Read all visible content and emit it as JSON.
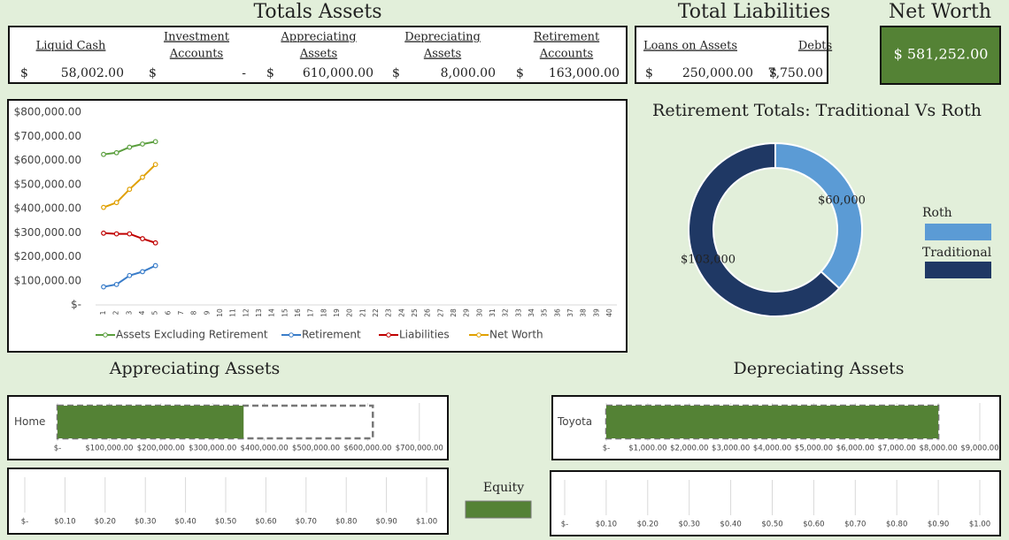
{
  "totals_assets": {
    "title": "Totals Assets",
    "columns": [
      {
        "label": [
          "Liquid Cash"
        ],
        "currency": "$",
        "value": "58,002.00"
      },
      {
        "label": [
          "Investment",
          "Accounts"
        ],
        "currency": "$",
        "value": "-"
      },
      {
        "label": [
          "Appreciating",
          "Assets"
        ],
        "currency": "$",
        "value": "610,000.00"
      },
      {
        "label": [
          "Depreciating",
          "Assets"
        ],
        "currency": "$",
        "value": "8,000.00"
      },
      {
        "label": [
          "Retirement",
          "Accounts"
        ],
        "currency": "$",
        "value": "163,000.00"
      }
    ]
  },
  "total_liabilities": {
    "title": "Total Liabilities",
    "columns": [
      {
        "label": [
          "Loans on Assets"
        ],
        "currency": "$",
        "value": "250,000.00"
      },
      {
        "label": [
          "Debts"
        ],
        "currency": "$",
        "value": "7,750.00"
      }
    ]
  },
  "net_worth": {
    "title": "Net Worth",
    "value": "$ 581,252.00"
  },
  "equity_legend": {
    "label": "Equity",
    "color": "#548235"
  },
  "chart_data": [
    {
      "type": "line",
      "categories": [
        1,
        2,
        3,
        4,
        5,
        6,
        7,
        8,
        9,
        10,
        11,
        12,
        13,
        14,
        15,
        16,
        17,
        18,
        19,
        20,
        21,
        22,
        23,
        24,
        25,
        26,
        27,
        28,
        29,
        30,
        31,
        32,
        33,
        34,
        35,
        36,
        37,
        38,
        39,
        40
      ],
      "ylim": [
        0,
        800000
      ],
      "yticks": [
        {
          "value": 0,
          "label": "$-"
        },
        {
          "value": 100000,
          "label": "$100,000.00"
        },
        {
          "value": 200000,
          "label": "$200,000.00"
        },
        {
          "value": 300000,
          "label": "$300,000.00"
        },
        {
          "value": 400000,
          "label": "$400,000.00"
        },
        {
          "value": 500000,
          "label": "$500,000.00"
        },
        {
          "value": 600000,
          "label": "$600,000.00"
        },
        {
          "value": 700000,
          "label": "$700,000.00"
        },
        {
          "value": 800000,
          "label": "$800,000.00"
        }
      ],
      "grid": false,
      "legend": "bottom",
      "series": [
        {
          "name": "Assets Excluding Retirement",
          "color": "#5b9f3e",
          "values": [
            625000,
            632000,
            655000,
            668000,
            678000,
            null,
            null,
            null,
            null,
            null,
            null,
            null,
            null,
            null,
            null,
            null,
            null,
            null,
            null,
            null,
            null,
            null,
            null,
            null,
            null,
            null,
            null,
            null,
            null,
            null,
            null,
            null,
            null,
            null,
            null,
            null,
            null,
            null,
            null,
            null
          ]
        },
        {
          "name": "Retirement",
          "color": "#3a7dc9",
          "values": [
            75000,
            85000,
            122000,
            138000,
            163000,
            null,
            null,
            null,
            null,
            null,
            null,
            null,
            null,
            null,
            null,
            null,
            null,
            null,
            null,
            null,
            null,
            null,
            null,
            null,
            null,
            null,
            null,
            null,
            null,
            null,
            null,
            null,
            null,
            null,
            null,
            null,
            null,
            null,
            null,
            null
          ]
        },
        {
          "name": "Liabilities",
          "color": "#c00000",
          "values": [
            298000,
            295000,
            295000,
            275000,
            257750,
            null,
            null,
            null,
            null,
            null,
            null,
            null,
            null,
            null,
            null,
            null,
            null,
            null,
            null,
            null,
            null,
            null,
            null,
            null,
            null,
            null,
            null,
            null,
            null,
            null,
            null,
            null,
            null,
            null,
            null,
            null,
            null,
            null,
            null,
            null
          ]
        },
        {
          "name": "Net Worth",
          "color": "#e0a000",
          "values": [
            405000,
            425000,
            480000,
            530000,
            583000,
            null,
            null,
            null,
            null,
            null,
            null,
            null,
            null,
            null,
            null,
            null,
            null,
            null,
            null,
            null,
            null,
            null,
            null,
            null,
            null,
            null,
            null,
            null,
            null,
            null,
            null,
            null,
            null,
            null,
            null,
            null,
            null,
            null,
            null,
            null
          ]
        }
      ]
    },
    {
      "type": "donut",
      "title": "Retirement Totals: Traditional Vs Roth",
      "categories": [
        "Roth",
        "Traditional"
      ],
      "values": [
        60000,
        103000
      ],
      "value_labels": [
        "$60,000",
        "$103,000"
      ],
      "colors": [
        "#5b9bd5",
        "#1f3864"
      ],
      "legend": "right"
    },
    {
      "type": "hbar",
      "title": "Appreciating Assets",
      "categories": [
        "Home"
      ],
      "values": [
        360000
      ],
      "targets": [
        610000
      ],
      "color": "#548235",
      "xlim": [
        0,
        750000
      ],
      "xticks": [
        {
          "value": 0,
          "label": "$-"
        },
        {
          "value": 100000,
          "label": "$100,000.00"
        },
        {
          "value": 200000,
          "label": "$200,000.00"
        },
        {
          "value": 300000,
          "label": "$300,000.00"
        },
        {
          "value": 400000,
          "label": "$400,000.00"
        },
        {
          "value": 500000,
          "label": "$500,000.00"
        },
        {
          "value": 600000,
          "label": "$600,000.00"
        },
        {
          "value": 700000,
          "label": "$700,000.00"
        }
      ],
      "grid": true
    },
    {
      "type": "hbar",
      "title": "Depreciating Assets",
      "categories": [
        "Toyota"
      ],
      "values": [
        8000
      ],
      "targets": [
        8000
      ],
      "color": "#548235",
      "xlim": [
        0,
        9000
      ],
      "xticks": [
        {
          "value": 0,
          "label": "$-"
        },
        {
          "value": 1000,
          "label": "$1,000.00"
        },
        {
          "value": 2000,
          "label": "$2,000.00"
        },
        {
          "value": 3000,
          "label": "$3,000.00"
        },
        {
          "value": 4000,
          "label": "$4,000.00"
        },
        {
          "value": 5000,
          "label": "$5,000.00"
        },
        {
          "value": 6000,
          "label": "$6,000.00"
        },
        {
          "value": 7000,
          "label": "$7,000.00"
        },
        {
          "value": 8000,
          "label": "$8,000.00"
        },
        {
          "value": 9000,
          "label": "$9,000.00"
        }
      ],
      "grid": true
    },
    {
      "type": "hbar",
      "xlim": [
        0,
        1
      ],
      "xticks": [
        {
          "value": 0,
          "label": "$-"
        },
        {
          "value": 0.1,
          "label": "$0.10"
        },
        {
          "value": 0.2,
          "label": "$0.20"
        },
        {
          "value": 0.3,
          "label": "$0.30"
        },
        {
          "value": 0.4,
          "label": "$0.40"
        },
        {
          "value": 0.5,
          "label": "$0.50"
        },
        {
          "value": 0.6,
          "label": "$0.60"
        },
        {
          "value": 0.7,
          "label": "$0.70"
        },
        {
          "value": 0.8,
          "label": "$0.80"
        },
        {
          "value": 0.9,
          "label": "$0.90"
        },
        {
          "value": 1,
          "label": "$1.00"
        }
      ],
      "grid": true
    },
    {
      "type": "hbar",
      "xlim": [
        0,
        1
      ],
      "xticks": [
        {
          "value": 0,
          "label": "$-"
        },
        {
          "value": 0.1,
          "label": "$0.10"
        },
        {
          "value": 0.2,
          "label": "$0.20"
        },
        {
          "value": 0.3,
          "label": "$0.30"
        },
        {
          "value": 0.4,
          "label": "$0.40"
        },
        {
          "value": 0.5,
          "label": "$0.50"
        },
        {
          "value": 0.6,
          "label": "$0.60"
        },
        {
          "value": 0.7,
          "label": "$0.70"
        },
        {
          "value": 0.8,
          "label": "$0.80"
        },
        {
          "value": 0.9,
          "label": "$0.90"
        },
        {
          "value": 1,
          "label": "$1.00"
        }
      ],
      "grid": true
    }
  ]
}
